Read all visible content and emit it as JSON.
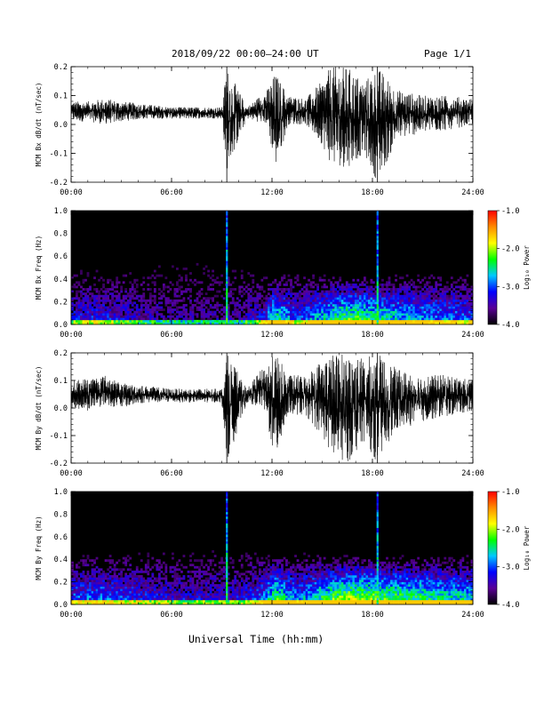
{
  "header": {
    "title": "2018/09/22  00:00–24:00 UT",
    "page": "Page 1/1"
  },
  "footer": {
    "xlabel": "Universal Time (hh:mm)"
  },
  "chart_data": [
    {
      "type": "line",
      "ylabel": "MCM Bx dB/dt (nT/sec)",
      "ylim": [
        -0.2,
        0.2
      ],
      "yticks": [
        "0.2",
        "0.1",
        "0.0",
        "-0.1",
        "-0.2"
      ],
      "xticks": [
        "00:00",
        "06:00",
        "12:00",
        "18:00",
        "24:00"
      ],
      "xlim_hours": [
        0,
        24
      ],
      "series": [
        {
          "color": "#000000",
          "envelope": [
            {
              "t": 0.0,
              "lo": 0.01,
              "hi": 0.08
            },
            {
              "t": 1.0,
              "lo": 0.01,
              "hi": 0.08
            },
            {
              "t": 2.0,
              "lo": 0.0,
              "hi": 0.09
            },
            {
              "t": 3.0,
              "lo": 0.01,
              "hi": 0.08
            },
            {
              "t": 4.5,
              "lo": 0.02,
              "hi": 0.07
            },
            {
              "t": 6.0,
              "lo": 0.02,
              "hi": 0.06
            },
            {
              "t": 7.5,
              "lo": 0.02,
              "hi": 0.06
            },
            {
              "t": 9.0,
              "lo": 0.02,
              "hi": 0.06
            },
            {
              "t": 9.3,
              "lo": -0.16,
              "hi": 0.2
            },
            {
              "t": 10.5,
              "lo": 0.02,
              "hi": 0.06
            },
            {
              "t": 11.7,
              "lo": 0.0,
              "hi": 0.12
            },
            {
              "t": 12.2,
              "lo": -0.15,
              "hi": 0.18
            },
            {
              "t": 13.0,
              "lo": 0.0,
              "hi": 0.1
            },
            {
              "t": 14.0,
              "lo": 0.0,
              "hi": 0.09
            },
            {
              "t": 15.0,
              "lo": -0.07,
              "hi": 0.15
            },
            {
              "t": 15.5,
              "lo": -0.14,
              "hi": 0.2
            },
            {
              "t": 16.5,
              "lo": -0.15,
              "hi": 0.2
            },
            {
              "t": 17.5,
              "lo": -0.1,
              "hi": 0.15
            },
            {
              "t": 18.3,
              "lo": -0.2,
              "hi": 0.2
            },
            {
              "t": 19.5,
              "lo": -0.05,
              "hi": 0.12
            },
            {
              "t": 21.0,
              "lo": -0.03,
              "hi": 0.1
            },
            {
              "t": 22.5,
              "lo": -0.02,
              "hi": 0.1
            },
            {
              "t": 24.0,
              "lo": 0.0,
              "hi": 0.09
            }
          ]
        }
      ]
    },
    {
      "type": "heatmap",
      "ylabel": "MCM Bx Freq (Hz)",
      "ylim": [
        0.0,
        1.0
      ],
      "yticks": [
        "1.0",
        "0.8",
        "0.6",
        "0.4",
        "0.2",
        "0.0"
      ],
      "xticks": [
        "00:00",
        "06:00",
        "12:00",
        "18:00",
        "24:00"
      ],
      "xlim_hours": [
        0,
        24
      ],
      "colorbar": {
        "label": "Log₁₀ Power",
        "range": [
          -4.0,
          -1.0
        ],
        "ticks": [
          "-1.0",
          "-2.0",
          "-3.0",
          "-4.0"
        ],
        "colors": [
          "#000000",
          "#5a0096",
          "#0000ff",
          "#00c8ff",
          "#00ff00",
          "#ffff00",
          "#ff8c00",
          "#ff0000"
        ]
      },
      "activity": [
        {
          "t": 0.0,
          "level": 0.25
        },
        {
          "t": 2.0,
          "level": 0.3
        },
        {
          "t": 4.0,
          "level": 0.2
        },
        {
          "t": 6.0,
          "level": 0.15
        },
        {
          "t": 8.0,
          "level": 0.15
        },
        {
          "t": 10.0,
          "level": 0.15
        },
        {
          "t": 11.5,
          "level": 0.3
        },
        {
          "t": 12.2,
          "level": 0.6
        },
        {
          "t": 13.5,
          "level": 0.3
        },
        {
          "t": 15.0,
          "level": 0.5
        },
        {
          "t": 16.5,
          "level": 0.65
        },
        {
          "t": 18.0,
          "level": 0.6
        },
        {
          "t": 19.5,
          "level": 0.5
        },
        {
          "t": 21.0,
          "level": 0.45
        },
        {
          "t": 24.0,
          "level": 0.35
        }
      ],
      "spikes_hours": [
        9.3,
        18.3
      ]
    },
    {
      "type": "line",
      "ylabel": "MCM By dB/dt (nT/sec)",
      "ylim": [
        -0.2,
        0.2
      ],
      "yticks": [
        "0.2",
        "0.1",
        "0.0",
        "-0.1",
        "-0.2"
      ],
      "xticks": [
        "00:00",
        "06:00",
        "12:00",
        "18:00",
        "24:00"
      ],
      "xlim_hours": [
        0,
        24
      ],
      "series": [
        {
          "color": "#000000",
          "envelope": [
            {
              "t": 0.0,
              "lo": 0.0,
              "hi": 0.1
            },
            {
              "t": 1.0,
              "lo": -0.01,
              "hi": 0.11
            },
            {
              "t": 2.0,
              "lo": 0.01,
              "hi": 0.12
            },
            {
              "t": 3.0,
              "lo": 0.0,
              "hi": 0.09
            },
            {
              "t": 4.5,
              "lo": 0.02,
              "hi": 0.08
            },
            {
              "t": 6.0,
              "lo": 0.02,
              "hi": 0.07
            },
            {
              "t": 7.5,
              "lo": 0.02,
              "hi": 0.07
            },
            {
              "t": 9.0,
              "lo": 0.02,
              "hi": 0.07
            },
            {
              "t": 9.3,
              "lo": -0.2,
              "hi": 0.2
            },
            {
              "t": 10.5,
              "lo": 0.02,
              "hi": 0.07
            },
            {
              "t": 11.5,
              "lo": 0.0,
              "hi": 0.15
            },
            {
              "t": 12.2,
              "lo": -0.2,
              "hi": 0.2
            },
            {
              "t": 13.0,
              "lo": -0.02,
              "hi": 0.12
            },
            {
              "t": 14.0,
              "lo": -0.03,
              "hi": 0.12
            },
            {
              "t": 15.0,
              "lo": -0.1,
              "hi": 0.18
            },
            {
              "t": 15.7,
              "lo": -0.2,
              "hi": 0.2
            },
            {
              "t": 16.5,
              "lo": -0.2,
              "hi": 0.2
            },
            {
              "t": 17.5,
              "lo": -0.12,
              "hi": 0.18
            },
            {
              "t": 18.3,
              "lo": -0.2,
              "hi": 0.2
            },
            {
              "t": 19.5,
              "lo": -0.08,
              "hi": 0.14
            },
            {
              "t": 21.0,
              "lo": -0.05,
              "hi": 0.12
            },
            {
              "t": 22.5,
              "lo": -0.03,
              "hi": 0.12
            },
            {
              "t": 24.0,
              "lo": -0.01,
              "hi": 0.1
            }
          ]
        }
      ]
    },
    {
      "type": "heatmap",
      "ylabel": "MCM By Freq (Hz)",
      "ylim": [
        0.0,
        1.0
      ],
      "yticks": [
        "1.0",
        "0.8",
        "0.6",
        "0.4",
        "0.2",
        "0.0"
      ],
      "xticks": [
        "00:00",
        "06:00",
        "12:00",
        "18:00",
        "24:00"
      ],
      "xlim_hours": [
        0,
        24
      ],
      "colorbar": {
        "label": "Log₁₀ Power",
        "range": [
          -4.0,
          -1.0
        ],
        "ticks": [
          "-1.0",
          "-2.0",
          "-3.0",
          "-4.0"
        ],
        "colors": [
          "#000000",
          "#5a0096",
          "#0000ff",
          "#00c8ff",
          "#00ff00",
          "#ffff00",
          "#ff8c00",
          "#ff0000"
        ]
      },
      "activity": [
        {
          "t": 0.0,
          "level": 0.35
        },
        {
          "t": 2.0,
          "level": 0.4
        },
        {
          "t": 4.0,
          "level": 0.3
        },
        {
          "t": 6.0,
          "level": 0.25
        },
        {
          "t": 8.0,
          "level": 0.25
        },
        {
          "t": 10.0,
          "level": 0.25
        },
        {
          "t": 11.5,
          "level": 0.4
        },
        {
          "t": 12.2,
          "level": 0.65
        },
        {
          "t": 13.5,
          "level": 0.4
        },
        {
          "t": 15.0,
          "level": 0.6
        },
        {
          "t": 16.5,
          "level": 0.75
        },
        {
          "t": 18.0,
          "level": 0.7
        },
        {
          "t": 19.5,
          "level": 0.65
        },
        {
          "t": 21.0,
          "level": 0.6
        },
        {
          "t": 24.0,
          "level": 0.5
        }
      ],
      "spikes_hours": [
        9.3,
        18.3
      ]
    }
  ]
}
